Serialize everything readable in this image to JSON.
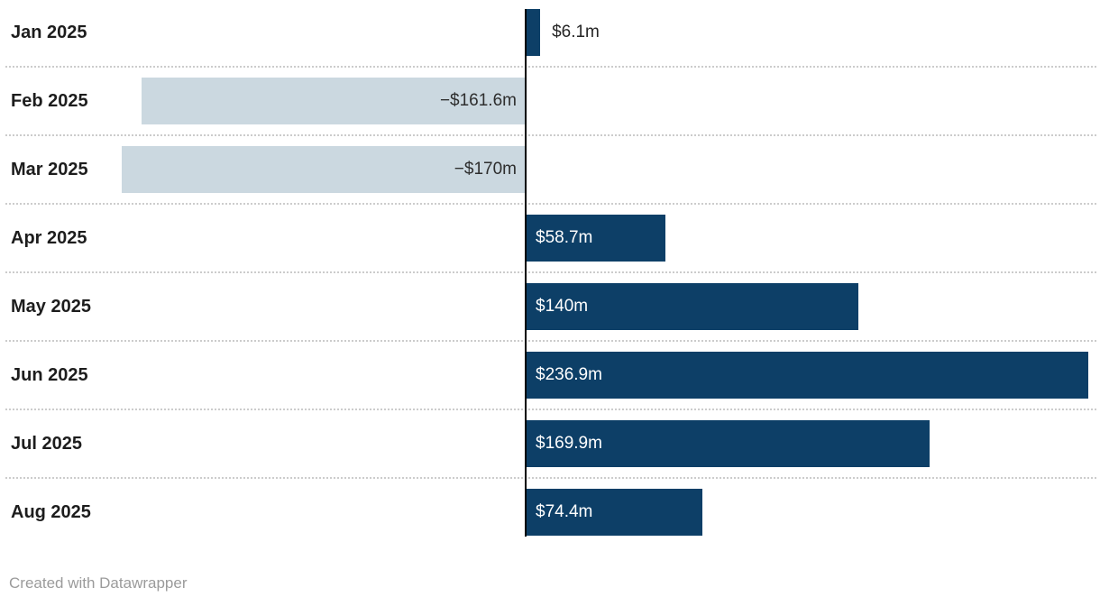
{
  "chart_data": {
    "type": "bar",
    "orientation": "horizontal",
    "title": "",
    "categories": [
      "Jan 2025",
      "Feb 2025",
      "Mar 2025",
      "Apr 2025",
      "May 2025",
      "Jun 2025",
      "Jul 2025",
      "Aug 2025"
    ],
    "values": [
      6.1,
      -161.6,
      -170,
      58.7,
      140,
      236.9,
      169.9,
      74.4
    ],
    "value_labels": [
      "$6.1m",
      "−$161.6m",
      "−$170m",
      "$58.7m",
      "$140m",
      "$236.9m",
      "$169.9m",
      "$74.4m"
    ],
    "xlim": [
      -221,
      242
    ],
    "grid": false,
    "legend": "none",
    "colors": {
      "positive_bar": "#0d3f67",
      "negative_bar": "#cbd8e0",
      "value_text_inside_positive": "#ffffff",
      "value_text_negative": "#2e2e2e",
      "category_text": "#1d1d1d",
      "baseline": "#000000",
      "separator": "#cccccc"
    }
  },
  "footer": {
    "credit": "Created with Datawrapper"
  }
}
